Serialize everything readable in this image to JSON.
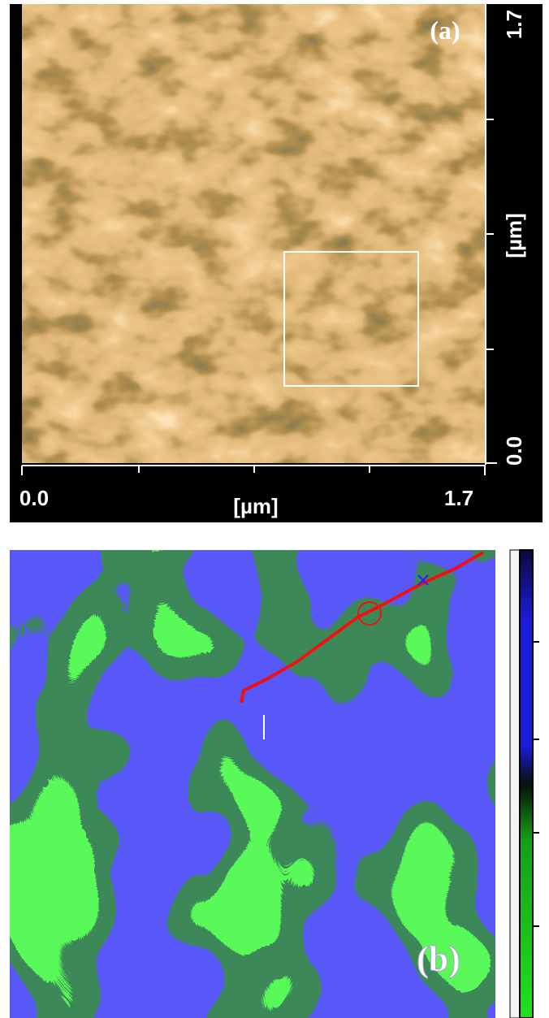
{
  "panel_a": {
    "label": "(a)",
    "right_axis": {
      "top": "1.7",
      "unit": "[µm]",
      "bottom": "0.0"
    },
    "bottom_axis": {
      "left": "0.0",
      "unit": "[µm]",
      "right": "1.7"
    }
  },
  "panel_b": {
    "label": "(b)"
  }
}
